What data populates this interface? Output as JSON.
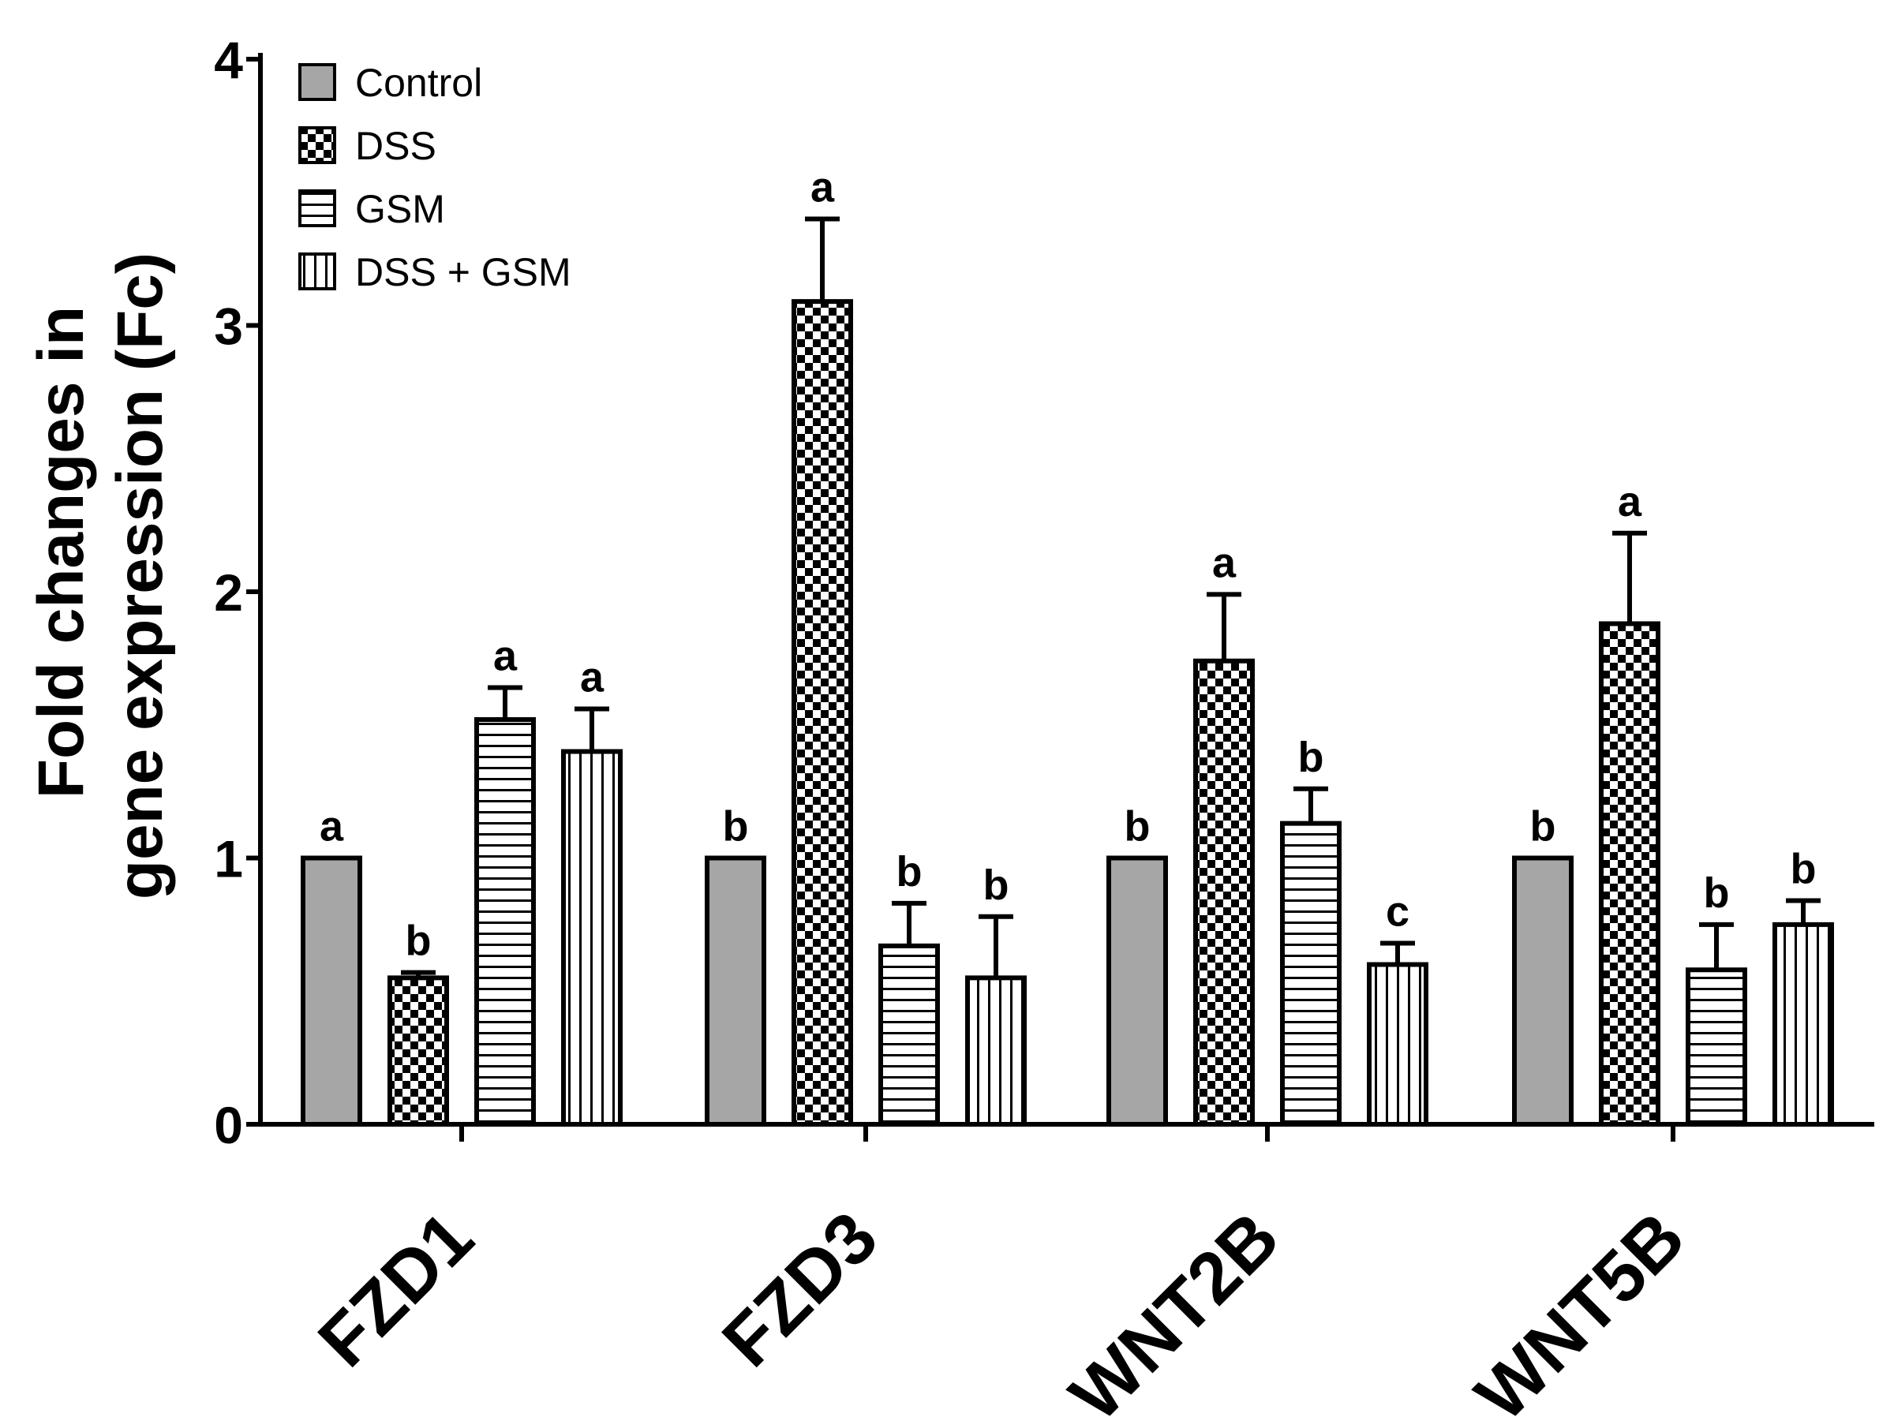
{
  "chart_data": {
    "type": "bar",
    "title": "",
    "xlabel": "",
    "ylabel_lines": [
      "Fold changes in",
      "gene expression (Fc)"
    ],
    "ylim": [
      0,
      4
    ],
    "yticks": [
      "0",
      "1",
      "2",
      "3",
      "4"
    ],
    "categories": [
      "FZD1",
      "FZD3",
      "WNT2B",
      "WNT5B"
    ],
    "series": [
      {
        "name": "Control",
        "pattern": "solid-gray",
        "fill": "#a6a6a6",
        "values": [
          1.0,
          1.0,
          1.0,
          1.0
        ],
        "errors": [
          0,
          0,
          0,
          0
        ],
        "labels": [
          "a",
          "b",
          "b",
          "b"
        ]
      },
      {
        "name": "DSS",
        "pattern": "checker",
        "fill": "#000000",
        "values": [
          0.55,
          3.09,
          1.74,
          1.88
        ],
        "errors": [
          0.02,
          0.31,
          0.25,
          0.34
        ],
        "labels": [
          "b",
          "a",
          "a",
          "a"
        ]
      },
      {
        "name": "GSM",
        "pattern": "horizontal-lines",
        "fill": "#000000",
        "values": [
          1.52,
          0.67,
          1.13,
          0.58
        ],
        "errors": [
          0.12,
          0.16,
          0.13,
          0.17
        ],
        "labels": [
          "a",
          "b",
          "b",
          "b"
        ]
      },
      {
        "name": "DSS + GSM",
        "pattern": "vertical-lines",
        "fill": "#000000",
        "values": [
          1.4,
          0.55,
          0.6,
          0.75
        ],
        "errors": [
          0.16,
          0.23,
          0.08,
          0.09
        ],
        "labels": [
          "a",
          "b",
          "c",
          "b"
        ]
      }
    ],
    "legend": {
      "position": "top-left"
    },
    "grid": false
  }
}
